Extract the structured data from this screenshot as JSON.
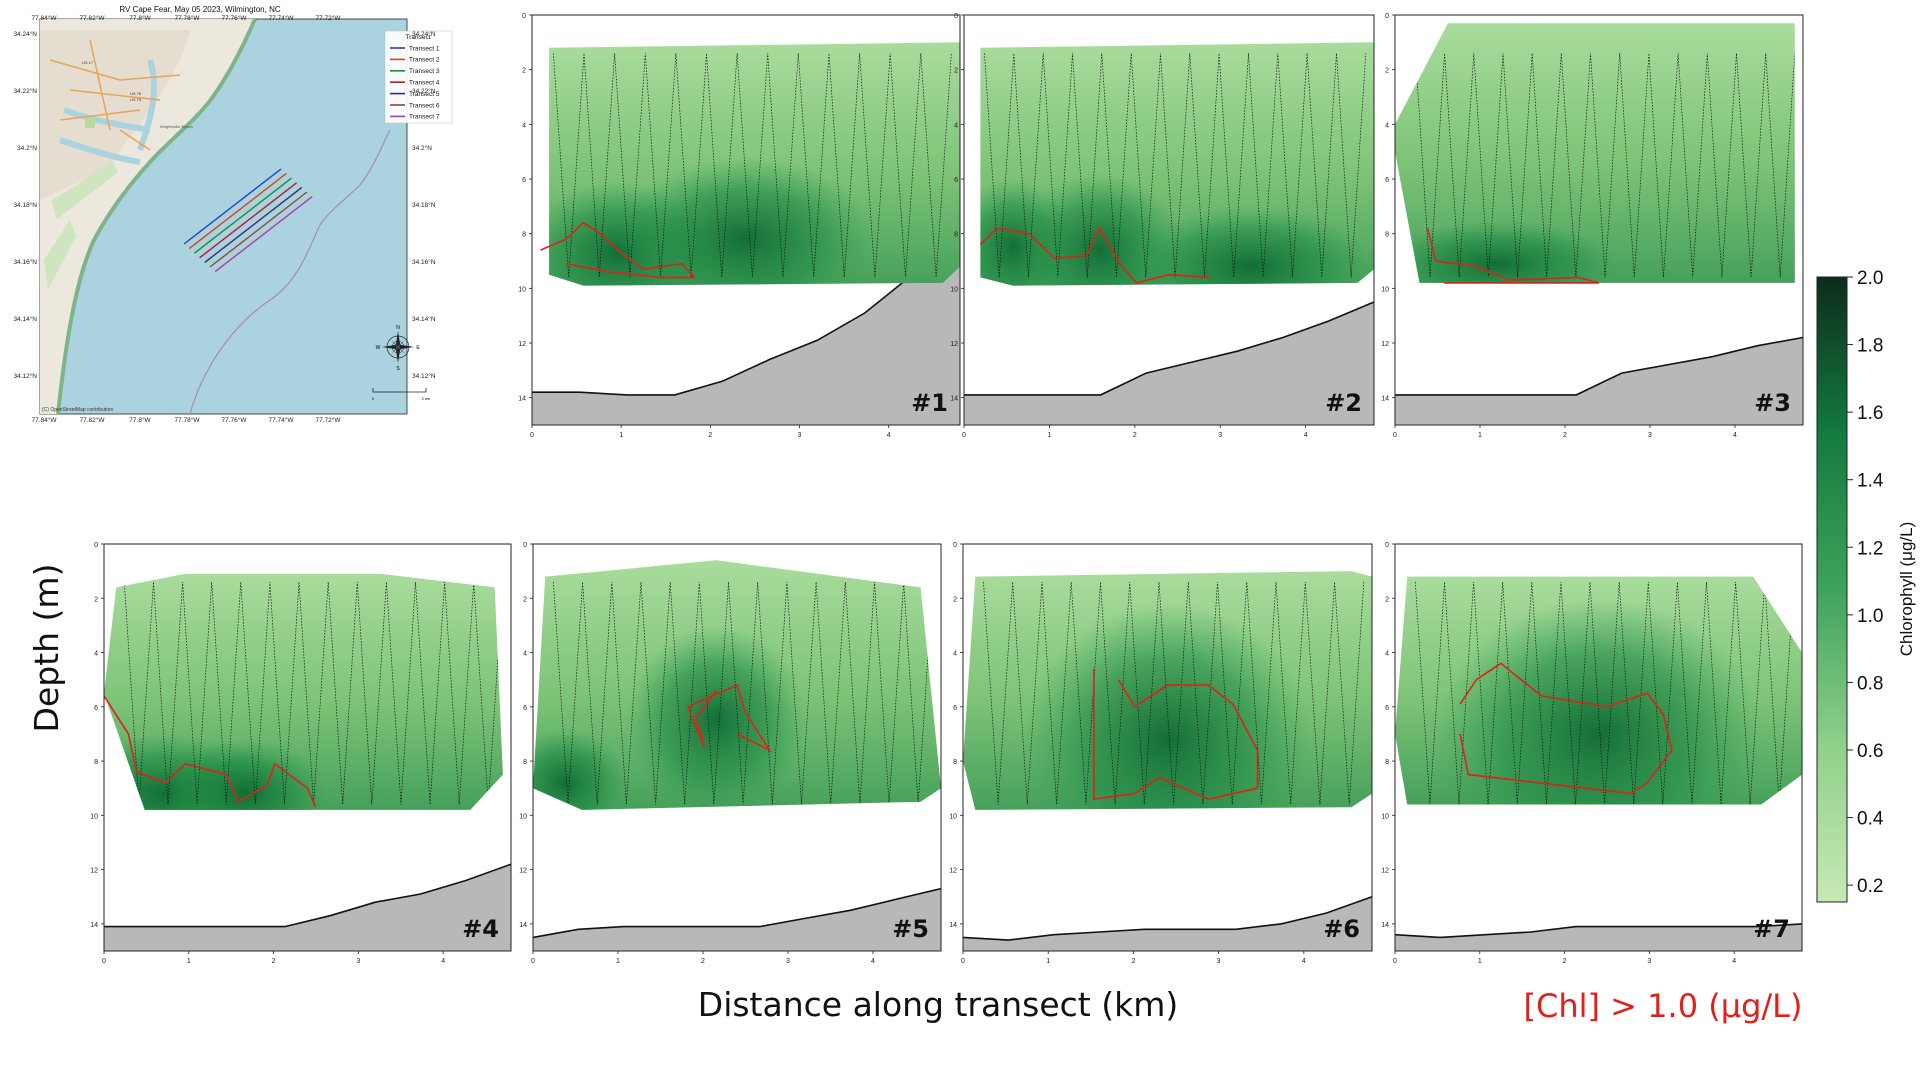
{
  "figure": {
    "ylabel": "Depth (m)",
    "xlabel": "Distance along transect (km)",
    "threshold_note": "[Chl] > 1.0 (μg/L)",
    "colors": {
      "contour": "#e0201b",
      "bathymetry": "#b8b8b8",
      "threshold_text": "#e0201b"
    }
  },
  "map": {
    "title": "RV Cape Fear, May 05 2023, Wilmington, NC",
    "lon_ticks": [
      "77.84°W",
      "77.82°W",
      "77.8°W",
      "77.78°W",
      "77.76°W",
      "77.74°W",
      "77.72°W"
    ],
    "lat_ticks": [
      "34.24°N",
      "34.22°N",
      "34.2°N",
      "34.18°N",
      "34.16°N",
      "34.14°N",
      "34.12°N"
    ],
    "legend_title": "Transect",
    "legend": [
      {
        "name": "Transect 1",
        "color": "#1f3fbf"
      },
      {
        "name": "Transect 2",
        "color": "#d2451e"
      },
      {
        "name": "Transect 3",
        "color": "#1e8a3a"
      },
      {
        "name": "Transect 4",
        "color": "#b01c2c"
      },
      {
        "name": "Transect 5",
        "color": "#3a2a6e"
      },
      {
        "name": "Transect 6",
        "color": "#8a4a3a"
      },
      {
        "name": "Transect 7",
        "color": "#b03aa8"
      }
    ],
    "attribution": "(C) OpenStreetMap contributors",
    "compass": [
      "N",
      "S",
      "E",
      "W"
    ],
    "scale_labels": [
      "0",
      "2 km"
    ],
    "roads": [
      "US 17",
      "US 76",
      "US 74"
    ],
    "places": [
      "Wrightsville Beach"
    ]
  },
  "chart_data": {
    "type": "heatmap",
    "xlim": [
      0,
      4.8
    ],
    "ylim": [
      15,
      0
    ],
    "x_ticks": [
      "0",
      "1",
      "2",
      "3",
      "4"
    ],
    "y_ticks": [
      "0",
      "2",
      "4",
      "6",
      "8",
      "10",
      "12",
      "14"
    ],
    "colorbar": {
      "label": "Chlorophyll (μg/L)",
      "range": [
        0.15,
        2.0
      ],
      "ticks": [
        "2.0",
        "1.8",
        "1.6",
        "1.4",
        "1.2",
        "1.0",
        "0.8",
        "0.6",
        "0.4",
        "0.2"
      ],
      "threshold": 1.0
    },
    "panels": [
      {
        "label": "#1",
        "bottom_depth_m": [
          13.8,
          13.8,
          13.9,
          13.9,
          13.4,
          12.6,
          11.9,
          10.9,
          9.5,
          8.8
        ],
        "chl_max_depth_m": 9,
        "chl_max_ugL": 1.3
      },
      {
        "label": "#2",
        "bottom_depth_m": [
          13.9,
          13.9,
          13.9,
          13.9,
          13.1,
          12.7,
          12.3,
          11.8,
          11.2,
          10.5
        ],
        "chl_max_depth_m": 9,
        "chl_max_ugL": 1.4
      },
      {
        "label": "#3",
        "bottom_depth_m": [
          13.9,
          13.9,
          13.9,
          13.9,
          13.9,
          13.1,
          12.8,
          12.5,
          12.1,
          11.8
        ],
        "chl_max_depth_m": 9.5,
        "chl_max_ugL": 1.2
      },
      {
        "label": "#4",
        "bottom_depth_m": [
          14.1,
          14.1,
          14.1,
          14.1,
          14.1,
          13.7,
          13.2,
          12.9,
          12.4,
          11.8
        ],
        "chl_max_depth_m": 9.5,
        "chl_max_ugL": 1.6
      },
      {
        "label": "#5",
        "bottom_depth_m": [
          14.5,
          14.2,
          14.1,
          14.1,
          14.1,
          14.1,
          13.8,
          13.5,
          13.1,
          12.7
        ],
        "chl_max_depth_m": 7,
        "chl_max_ugL": 1.3
      },
      {
        "label": "#6",
        "bottom_depth_m": [
          14.5,
          14.6,
          14.4,
          14.3,
          14.2,
          14.2,
          14.2,
          14.0,
          13.6,
          13.0
        ],
        "chl_max_depth_m": 7.5,
        "chl_max_ugL": 1.4
      },
      {
        "label": "#7",
        "bottom_depth_m": [
          14.4,
          14.5,
          14.4,
          14.3,
          14.1,
          14.1,
          14.1,
          14.1,
          14.1,
          14.0
        ],
        "chl_max_depth_m": 7,
        "chl_max_ugL": 1.4
      }
    ]
  }
}
